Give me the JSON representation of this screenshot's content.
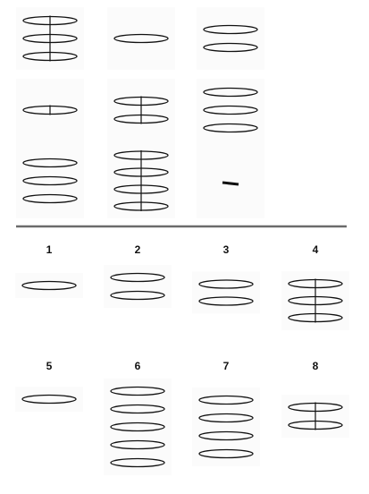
{
  "puzzle_grid": {
    "cells": [
      {
        "id": "r1c1",
        "discs": 3,
        "rod": true
      },
      {
        "id": "r1c2",
        "discs": 1,
        "rod": false
      },
      {
        "id": "r1c3",
        "discs": 2,
        "rod": false
      },
      {
        "id": "r2c1",
        "discs": 1,
        "rod": true
      },
      {
        "id": "r2c2",
        "discs": 2,
        "rod": true
      },
      {
        "id": "r2c3",
        "discs": 3,
        "rod": false
      },
      {
        "id": "r3c1",
        "discs": 3,
        "rod": false
      },
      {
        "id": "r3c2",
        "discs": 4,
        "rod": true
      },
      {
        "id": "r3c3",
        "missing": true
      }
    ]
  },
  "answer_options": [
    {
      "label": "1",
      "discs": 1,
      "rod": false
    },
    {
      "label": "2",
      "discs": 2,
      "rod": false
    },
    {
      "label": "3",
      "discs": 2,
      "rod": false
    },
    {
      "label": "4",
      "discs": 3,
      "rod": true
    },
    {
      "label": "5",
      "discs": 1,
      "rod": false
    },
    {
      "label": "6",
      "discs": 5,
      "rod": false
    },
    {
      "label": "7",
      "discs": 4,
      "rod": false
    },
    {
      "label": "8",
      "discs": 2,
      "rod": true
    }
  ]
}
